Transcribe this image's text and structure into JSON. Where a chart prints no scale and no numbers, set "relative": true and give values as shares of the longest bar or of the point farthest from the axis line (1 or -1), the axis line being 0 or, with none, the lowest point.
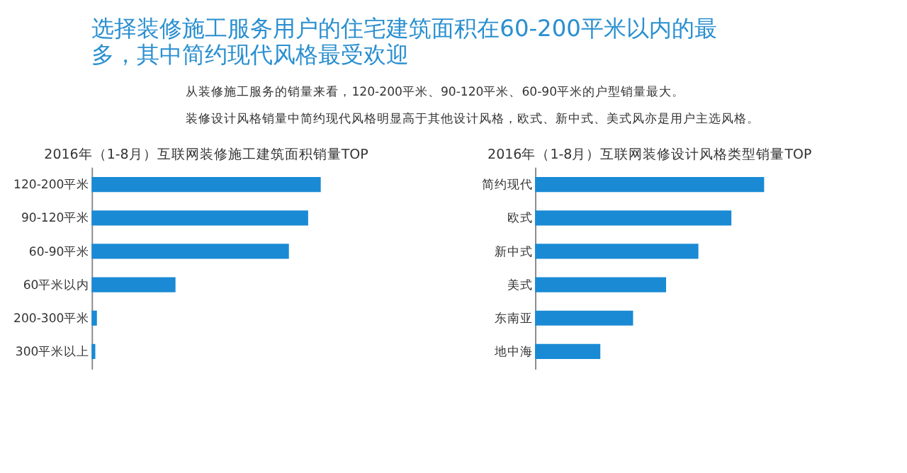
{
  "chart_data": [
    {
      "type": "other",
      "title": "选择装修施工服务用户的住宅建筑面积在60-200平米以内的最多，其中简约现代风格最受欢迎",
      "annotations": [
        "从装修施工服务的销量来看，120-200平米、90-120平米、60-90平米的户型销量最大。",
        "装修设计风格销量中简约现代风格明显高于其他设计风格，欧式、新中式、美式风亦是用户主选风格。"
      ]
    },
    {
      "type": "bar",
      "orientation": "horizontal",
      "relative": true,
      "title": "2016年（1-8月）互联网装修施工建筑面积销量TOP",
      "categories": [
        "120-200平米",
        "90-120平米",
        "60-90平米",
        "60平米以内",
        "200-300平米",
        "300平米以上"
      ],
      "values": [
        1,
        0.945,
        0.861,
        0.366,
        0.023,
        0.016
      ],
      "color": "#1a8ad4"
    },
    {
      "type": "bar",
      "orientation": "horizontal",
      "relative": true,
      "title": "2016年（1-8月）互联网装修设计风格类型销量TOP",
      "categories": [
        "简约现代",
        "欧式",
        "新中式",
        "美式",
        "东南亚",
        "地中海"
      ],
      "values": [
        1,
        0.857,
        0.713,
        0.572,
        0.428,
        0.285
      ],
      "color": "#1a8ad4"
    }
  ]
}
